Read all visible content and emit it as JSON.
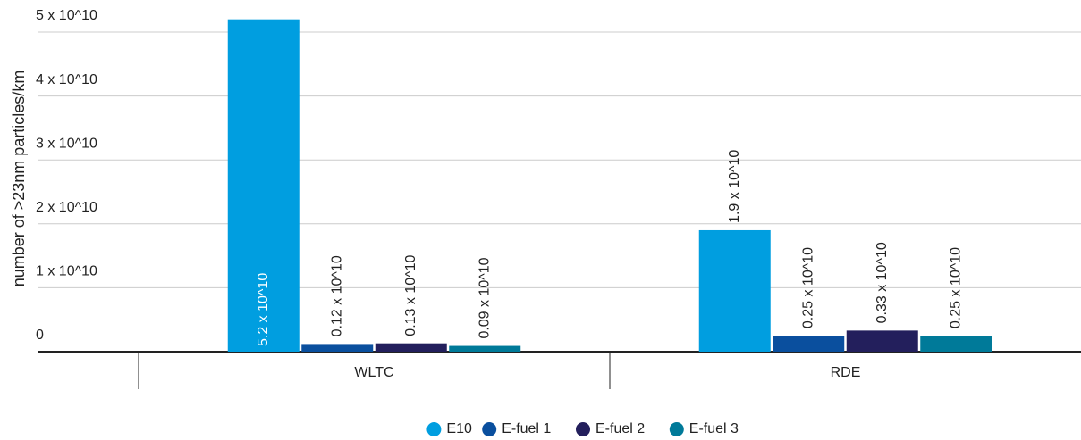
{
  "chart_data": {
    "type": "bar",
    "ylabel": "number of >23nm particles/km",
    "categories": [
      "WLTC",
      "RDE"
    ],
    "series": [
      {
        "name": "E10",
        "color": "#009ee0",
        "values": [
          52000000000,
          19000000000
        ],
        "value_labels": [
          "5.2 x 10^10",
          "1.9 x 10^10"
        ]
      },
      {
        "name": "E-fuel 1",
        "color": "#0a4f9e",
        "values": [
          1200000000,
          2500000000
        ],
        "value_labels": [
          "0.12 x 10^10",
          "0.25 x 10^10"
        ]
      },
      {
        "name": "E-fuel 2",
        "color": "#231f5c",
        "values": [
          1300000000,
          3300000000
        ],
        "value_labels": [
          "0.13 x 10^10",
          "0.33 x 10^10"
        ]
      },
      {
        "name": "E-fuel 3",
        "color": "#007a99",
        "values": [
          900000000,
          2500000000
        ],
        "value_labels": [
          "0.09 x 10^10",
          "0.25 x 10^10"
        ]
      }
    ],
    "ylim": [
      0,
      50000000000
    ],
    "yticks": [
      0,
      {
        "value": 10000000000,
        "label": "1 x 10^10"
      },
      {
        "value": 20000000000,
        "label": "2 x 10^10"
      },
      {
        "value": 30000000000,
        "label": "3 x 10^10"
      },
      {
        "value": 40000000000,
        "label": "4 x 10^10"
      },
      {
        "value": 50000000000,
        "label": "5 x 10^10"
      }
    ],
    "grid": true,
    "legend": "bottom"
  }
}
